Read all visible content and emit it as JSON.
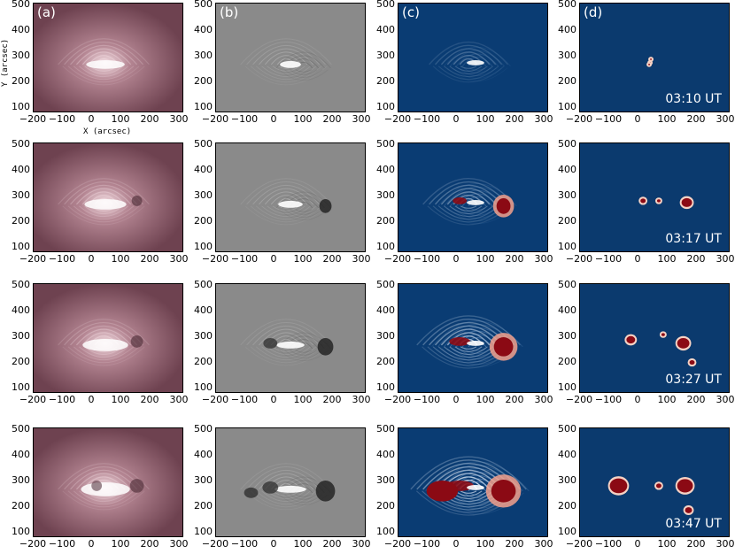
{
  "columns": [
    {
      "label": "(a)",
      "kind": "euv"
    },
    {
      "label": "(b)",
      "kind": "gray"
    },
    {
      "label": "(c)",
      "kind": "diff"
    },
    {
      "label": "(d)",
      "kind": "mask"
    }
  ],
  "rows": [
    {
      "time": "03:10 UT",
      "stage": 0
    },
    {
      "time": "03:17 UT",
      "stage": 1
    },
    {
      "time": "03:27 UT",
      "stage": 2
    },
    {
      "time": "03:47 UT",
      "stage": 3
    }
  ],
  "axes": {
    "x_title": "X (arcsec)",
    "y_title": "Y (arcsec)",
    "x_ticks": [
      "−200",
      "−100",
      "0",
      "100",
      "200",
      "300"
    ],
    "y_ticks": [
      "500",
      "400",
      "300",
      "200",
      "100"
    ]
  },
  "colors": {
    "euv_bg": "#6e4250",
    "euv_bright": "#f3dde2",
    "gray_bg": "#8a8a8a",
    "diff_bg": "#0a3c73",
    "mask_bg": "#0b3a6e",
    "red": "#8b0a14"
  }
}
